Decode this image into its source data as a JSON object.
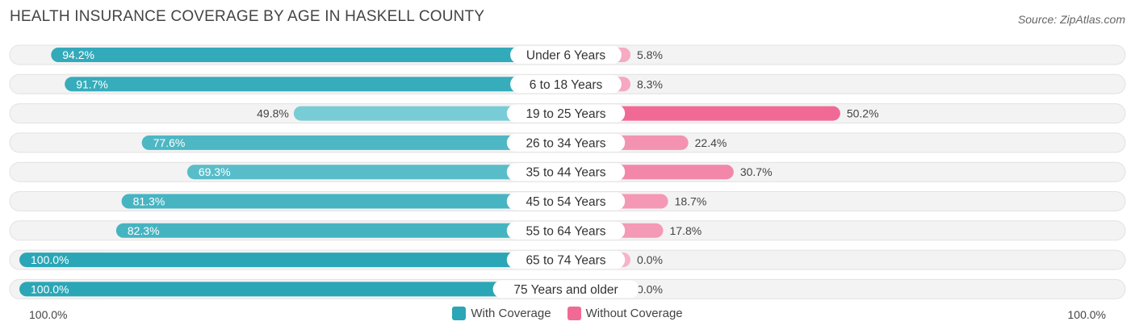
{
  "header": {
    "title": "HEALTH INSURANCE COVERAGE BY AGE IN HASKELL COUNTY",
    "source": "Source: ZipAtlas.com"
  },
  "colors": {
    "with_dark": "#2aa6b6",
    "with_light": "#7fd0d8",
    "without_dark": "#f06a95",
    "without_light": "#f6b4c8",
    "track": "#efefef"
  },
  "legend": {
    "with_label": "With Coverage",
    "without_label": "Without Coverage"
  },
  "axis": {
    "left_label": "100.0%",
    "right_label": "100.0%"
  },
  "chart_data": {
    "type": "bar",
    "orientation": "horizontal-diverging",
    "title": "HEALTH INSURANCE COVERAGE BY AGE IN HASKELL COUNTY",
    "categories": [
      "Under 6 Years",
      "6 to 18 Years",
      "19 to 25 Years",
      "26 to 34 Years",
      "35 to 44 Years",
      "45 to 54 Years",
      "55 to 64 Years",
      "65 to 74 Years",
      "75 Years and older"
    ],
    "series": [
      {
        "name": "With Coverage",
        "values": [
          94.2,
          91.7,
          49.8,
          77.6,
          69.3,
          81.3,
          82.3,
          100.0,
          100.0
        ],
        "labels": [
          "94.2%",
          "91.7%",
          "49.8%",
          "77.6%",
          "69.3%",
          "81.3%",
          "82.3%",
          "100.0%",
          "100.0%"
        ]
      },
      {
        "name": "Without Coverage",
        "values": [
          5.8,
          8.3,
          50.2,
          22.4,
          30.7,
          18.7,
          17.8,
          0.0,
          0.0
        ],
        "labels": [
          "5.8%",
          "8.3%",
          "50.2%",
          "22.4%",
          "30.7%",
          "18.7%",
          "17.8%",
          "0.0%",
          "0.0%"
        ]
      }
    ],
    "xlim": [
      -100,
      100
    ],
    "legend_position": "bottom-center"
  }
}
